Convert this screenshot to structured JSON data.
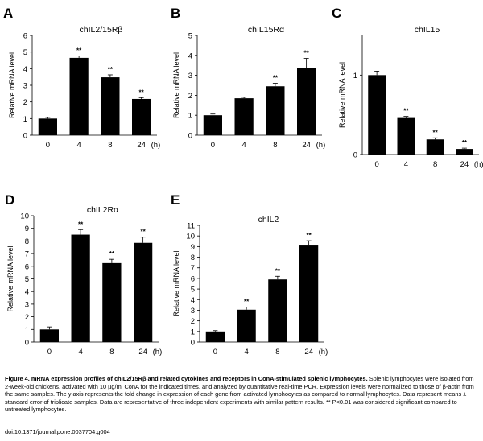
{
  "chart_data": [
    {
      "panel": "A",
      "type": "bar",
      "title": "chIL2/15Rβ",
      "ylabel": "Relative mRNA level",
      "categories": [
        "0",
        "4",
        "8",
        "24"
      ],
      "x_unit": "(h)",
      "values": [
        1.0,
        4.65,
        3.48,
        2.18
      ],
      "errors": [
        0.07,
        0.12,
        0.15,
        0.08
      ],
      "significance": [
        "",
        "**",
        "**",
        "**"
      ],
      "ylim": [
        0,
        6
      ],
      "yticks": [
        "0",
        "1",
        "2",
        "3",
        "4",
        "5",
        "6"
      ]
    },
    {
      "panel": "B",
      "type": "bar",
      "title": "chIL15Rα",
      "ylabel": "Relative mRNA level",
      "categories": [
        "0",
        "4",
        "8",
        "24"
      ],
      "x_unit": "(h)",
      "values": [
        1.0,
        1.85,
        2.45,
        3.35
      ],
      "errors": [
        0.06,
        0.05,
        0.15,
        0.5
      ],
      "significance": [
        "",
        "",
        "**",
        "**"
      ],
      "ylim": [
        0,
        5
      ],
      "yticks": [
        "0",
        "1",
        "2",
        "3",
        "4",
        "5"
      ]
    },
    {
      "panel": "C",
      "type": "bar",
      "title": "chIL15",
      "ylabel": "Relative mRNA level",
      "categories": [
        "0",
        "4",
        "8",
        "24"
      ],
      "x_unit": "(h)",
      "values": [
        1.0,
        0.46,
        0.19,
        0.07
      ],
      "errors": [
        0.05,
        0.02,
        0.02,
        0.01
      ],
      "significance": [
        "",
        "**",
        "**",
        "**"
      ],
      "ylim": [
        0,
        1.5
      ],
      "yticks": [
        "0",
        "1"
      ],
      "ytick_values": [
        0,
        1
      ]
    },
    {
      "panel": "D",
      "type": "bar",
      "title": "chIL2Rα",
      "ylabel": "Relative mRNA level",
      "categories": [
        "0",
        "4",
        "8",
        "24"
      ],
      "x_unit": "(h)",
      "values": [
        1.0,
        8.5,
        6.25,
        7.85
      ],
      "errors": [
        0.2,
        0.4,
        0.3,
        0.45
      ],
      "significance": [
        "",
        "**",
        "**",
        "**"
      ],
      "ylim": [
        0,
        10
      ],
      "yticks": [
        "0",
        "1",
        "2",
        "3",
        "4",
        "5",
        "6",
        "7",
        "8",
        "9",
        "10"
      ]
    },
    {
      "panel": "E",
      "type": "bar",
      "title": "chIL2",
      "ylabel": "Relative mRNA level",
      "categories": [
        "0",
        "4",
        "8",
        "24"
      ],
      "x_unit": "(h)",
      "values": [
        1.0,
        3.05,
        5.9,
        9.1
      ],
      "errors": [
        0.08,
        0.25,
        0.3,
        0.45
      ],
      "significance": [
        "",
        "**",
        "**",
        "**"
      ],
      "ylim": [
        0,
        11
      ],
      "yticks": [
        "0",
        "1",
        "2",
        "3",
        "4",
        "5",
        "6",
        "7",
        "8",
        "9",
        "10",
        "11"
      ]
    }
  ],
  "caption": {
    "title": "Figure 4. mRNA expression profiles of chIL2/15Rβ and related cytokines and receptors in ConA-stimulated splenic lymphocytes.",
    "body": "Splenic lymphocytes were isolated from 2-week-old chickens, activated with 10 µg/ml ConA for the indicated times, and analyzed by quantitative real-time PCR. Expression levels were normalized to those of β-actin from the same samples. The y axis represents the fold change in expression of each gene from activated lymphocytes as compared to normal lymphocytes. Data represent means ± standard error of triplicate samples. Data are representative of three independent experiments with similar pattern results. ** P<0.01 was considered significant compared to untreated lymphocytes.",
    "doi": "doi:10.1371/journal.pone.0037704.g004"
  }
}
